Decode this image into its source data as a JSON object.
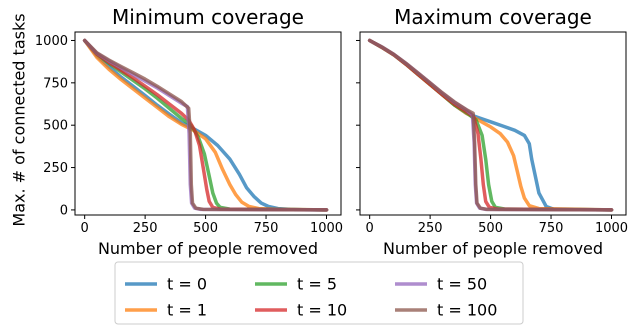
{
  "figure": {
    "ylabel": "Max. # of connected tasks",
    "legend_location": "lower center, below plots"
  },
  "chart_data": [
    {
      "type": "line",
      "title": "Minimum coverage",
      "xlabel": "Number of people removed",
      "ylabel": "Max. # of connected tasks",
      "xlim": [
        -40,
        1060
      ],
      "ylim": [
        -30,
        1050
      ],
      "xticks": [
        0,
        250,
        500,
        750,
        1000
      ],
      "yticks": [
        0,
        250,
        500,
        750,
        1000
      ],
      "grid": false,
      "series": [
        {
          "name": "t = 0",
          "color": "#1f77b4",
          "points": [
            [
              0,
              1000
            ],
            [
              50,
              910
            ],
            [
              100,
              845
            ],
            [
              150,
              785
            ],
            [
              200,
              730
            ],
            [
              250,
              675
            ],
            [
              300,
              618
            ],
            [
              350,
              565
            ],
            [
              400,
              515
            ],
            [
              450,
              480
            ],
            [
              500,
              440
            ],
            [
              550,
              380
            ],
            [
              600,
              300
            ],
            [
              640,
              210
            ],
            [
              670,
              130
            ],
            [
              700,
              80
            ],
            [
              730,
              40
            ],
            [
              760,
              20
            ],
            [
              800,
              8
            ],
            [
              850,
              3
            ],
            [
              900,
              1
            ],
            [
              1000,
              0
            ]
          ]
        },
        {
          "name": "t = 1",
          "color": "#ff7f0e",
          "points": [
            [
              0,
              1000
            ],
            [
              50,
              900
            ],
            [
              100,
              830
            ],
            [
              150,
              770
            ],
            [
              200,
              715
            ],
            [
              250,
              660
            ],
            [
              300,
              605
            ],
            [
              350,
              550
            ],
            [
              400,
              505
            ],
            [
              450,
              470
            ],
            [
              500,
              420
            ],
            [
              540,
              340
            ],
            [
              570,
              240
            ],
            [
              600,
              150
            ],
            [
              625,
              90
            ],
            [
              650,
              45
            ],
            [
              680,
              20
            ],
            [
              720,
              8
            ],
            [
              800,
              3
            ],
            [
              1000,
              0
            ]
          ]
        },
        {
          "name": "t = 5",
          "color": "#2ca02c",
          "points": [
            [
              0,
              1000
            ],
            [
              50,
              920
            ],
            [
              100,
              865
            ],
            [
              150,
              815
            ],
            [
              200,
              765
            ],
            [
              250,
              715
            ],
            [
              300,
              660
            ],
            [
              350,
              600
            ],
            [
              400,
              540
            ],
            [
              440,
              500
            ],
            [
              470,
              430
            ],
            [
              495,
              330
            ],
            [
              515,
              200
            ],
            [
              530,
              100
            ],
            [
              545,
              40
            ],
            [
              560,
              15
            ],
            [
              600,
              5
            ],
            [
              1000,
              0
            ]
          ]
        },
        {
          "name": "t = 10",
          "color": "#d62728",
          "points": [
            [
              0,
              1000
            ],
            [
              50,
              920
            ],
            [
              100,
              870
            ],
            [
              150,
              825
            ],
            [
              200,
              780
            ],
            [
              250,
              730
            ],
            [
              300,
              680
            ],
            [
              350,
              625
            ],
            [
              400,
              570
            ],
            [
              430,
              530
            ],
            [
              455,
              470
            ],
            [
              475,
              380
            ],
            [
              490,
              250
            ],
            [
              505,
              120
            ],
            [
              515,
              50
            ],
            [
              530,
              15
            ],
            [
              560,
              5
            ],
            [
              1000,
              0
            ]
          ]
        },
        {
          "name": "t = 50",
          "color": "#9467bd",
          "points": [
            [
              0,
              1000
            ],
            [
              50,
              925
            ],
            [
              100,
              880
            ],
            [
              150,
              840
            ],
            [
              200,
              800
            ],
            [
              250,
              760
            ],
            [
              300,
              720
            ],
            [
              350,
              675
            ],
            [
              400,
              630
            ],
            [
              425,
              610
            ],
            [
              432,
              450
            ],
            [
              437,
              150
            ],
            [
              442,
              40
            ],
            [
              455,
              10
            ],
            [
              480,
              3
            ],
            [
              1000,
              0
            ]
          ]
        },
        {
          "name": "t = 100",
          "color": "#8c564b",
          "points": [
            [
              0,
              1000
            ],
            [
              50,
              928
            ],
            [
              100,
              885
            ],
            [
              150,
              847
            ],
            [
              200,
              810
            ],
            [
              250,
              772
            ],
            [
              300,
              730
            ],
            [
              350,
              685
            ],
            [
              400,
              640
            ],
            [
              430,
              600
            ],
            [
              437,
              450
            ],
            [
              441,
              150
            ],
            [
              446,
              40
            ],
            [
              460,
              10
            ],
            [
              490,
              3
            ],
            [
              1000,
              0
            ]
          ]
        }
      ]
    },
    {
      "type": "line",
      "title": "Maximum coverage",
      "xlabel": "Number of people removed",
      "xlim": [
        -40,
        1060
      ],
      "ylim": [
        -30,
        1050
      ],
      "xticks": [
        0,
        250,
        500,
        750,
        1000
      ],
      "yticks": [
        0,
        250,
        500,
        750,
        1000
      ],
      "grid": false,
      "series": [
        {
          "name": "t = 0",
          "color": "#1f77b4",
          "points": [
            [
              0,
              1000
            ],
            [
              50,
              960
            ],
            [
              100,
              915
            ],
            [
              150,
              860
            ],
            [
              200,
              800
            ],
            [
              250,
              740
            ],
            [
              300,
              680
            ],
            [
              350,
              620
            ],
            [
              400,
              570
            ],
            [
              450,
              545
            ],
            [
              500,
              520
            ],
            [
              550,
              495
            ],
            [
              600,
              470
            ],
            [
              640,
              440
            ],
            [
              660,
              390
            ],
            [
              670,
              300
            ],
            [
              685,
              200
            ],
            [
              700,
              100
            ],
            [
              715,
              60
            ],
            [
              730,
              20
            ],
            [
              760,
              5
            ],
            [
              1000,
              0
            ]
          ]
        },
        {
          "name": "t = 1",
          "color": "#ff7f0e",
          "points": [
            [
              0,
              1000
            ],
            [
              50,
              960
            ],
            [
              100,
              915
            ],
            [
              150,
              860
            ],
            [
              200,
              800
            ],
            [
              250,
              740
            ],
            [
              300,
              680
            ],
            [
              350,
              620
            ],
            [
              400,
              570
            ],
            [
              450,
              530
            ],
            [
              500,
              490
            ],
            [
              540,
              450
            ],
            [
              570,
              400
            ],
            [
              595,
              320
            ],
            [
              610,
              230
            ],
            [
              625,
              140
            ],
            [
              640,
              70
            ],
            [
              660,
              25
            ],
            [
              700,
              8
            ],
            [
              1000,
              0
            ]
          ]
        },
        {
          "name": "t = 5",
          "color": "#2ca02c",
          "points": [
            [
              0,
              1000
            ],
            [
              50,
              960
            ],
            [
              100,
              915
            ],
            [
              150,
              860
            ],
            [
              200,
              800
            ],
            [
              250,
              740
            ],
            [
              300,
              680
            ],
            [
              350,
              620
            ],
            [
              400,
              575
            ],
            [
              440,
              530
            ],
            [
              465,
              440
            ],
            [
              480,
              300
            ],
            [
              492,
              150
            ],
            [
              505,
              50
            ],
            [
              520,
              15
            ],
            [
              560,
              5
            ],
            [
              1000,
              0
            ]
          ]
        },
        {
          "name": "t = 10",
          "color": "#d62728",
          "points": [
            [
              0,
              1000
            ],
            [
              50,
              960
            ],
            [
              100,
              915
            ],
            [
              150,
              860
            ],
            [
              200,
              800
            ],
            [
              250,
              740
            ],
            [
              300,
              680
            ],
            [
              350,
              625
            ],
            [
              400,
              580
            ],
            [
              430,
              550
            ],
            [
              448,
              450
            ],
            [
              460,
              300
            ],
            [
              470,
              150
            ],
            [
              480,
              50
            ],
            [
              495,
              15
            ],
            [
              530,
              5
            ],
            [
              1000,
              0
            ]
          ]
        },
        {
          "name": "t = 50",
          "color": "#9467bd",
          "points": [
            [
              0,
              1000
            ],
            [
              50,
              962
            ],
            [
              100,
              918
            ],
            [
              150,
              865
            ],
            [
              200,
              808
            ],
            [
              250,
              750
            ],
            [
              300,
              690
            ],
            [
              350,
              635
            ],
            [
              400,
              590
            ],
            [
              425,
              560
            ],
            [
              432,
              400
            ],
            [
              437,
              150
            ],
            [
              442,
              40
            ],
            [
              455,
              10
            ],
            [
              480,
              3
            ],
            [
              1000,
              0
            ]
          ]
        },
        {
          "name": "t = 100",
          "color": "#8c564b",
          "points": [
            [
              0,
              1000
            ],
            [
              50,
              962
            ],
            [
              100,
              918
            ],
            [
              150,
              865
            ],
            [
              200,
              808
            ],
            [
              250,
              750
            ],
            [
              300,
              692
            ],
            [
              350,
              638
            ],
            [
              400,
              592
            ],
            [
              428,
              570
            ],
            [
              434,
              400
            ],
            [
              439,
              150
            ],
            [
              444,
              40
            ],
            [
              458,
              10
            ],
            [
              485,
              3
            ],
            [
              1000,
              0
            ]
          ]
        }
      ]
    }
  ]
}
